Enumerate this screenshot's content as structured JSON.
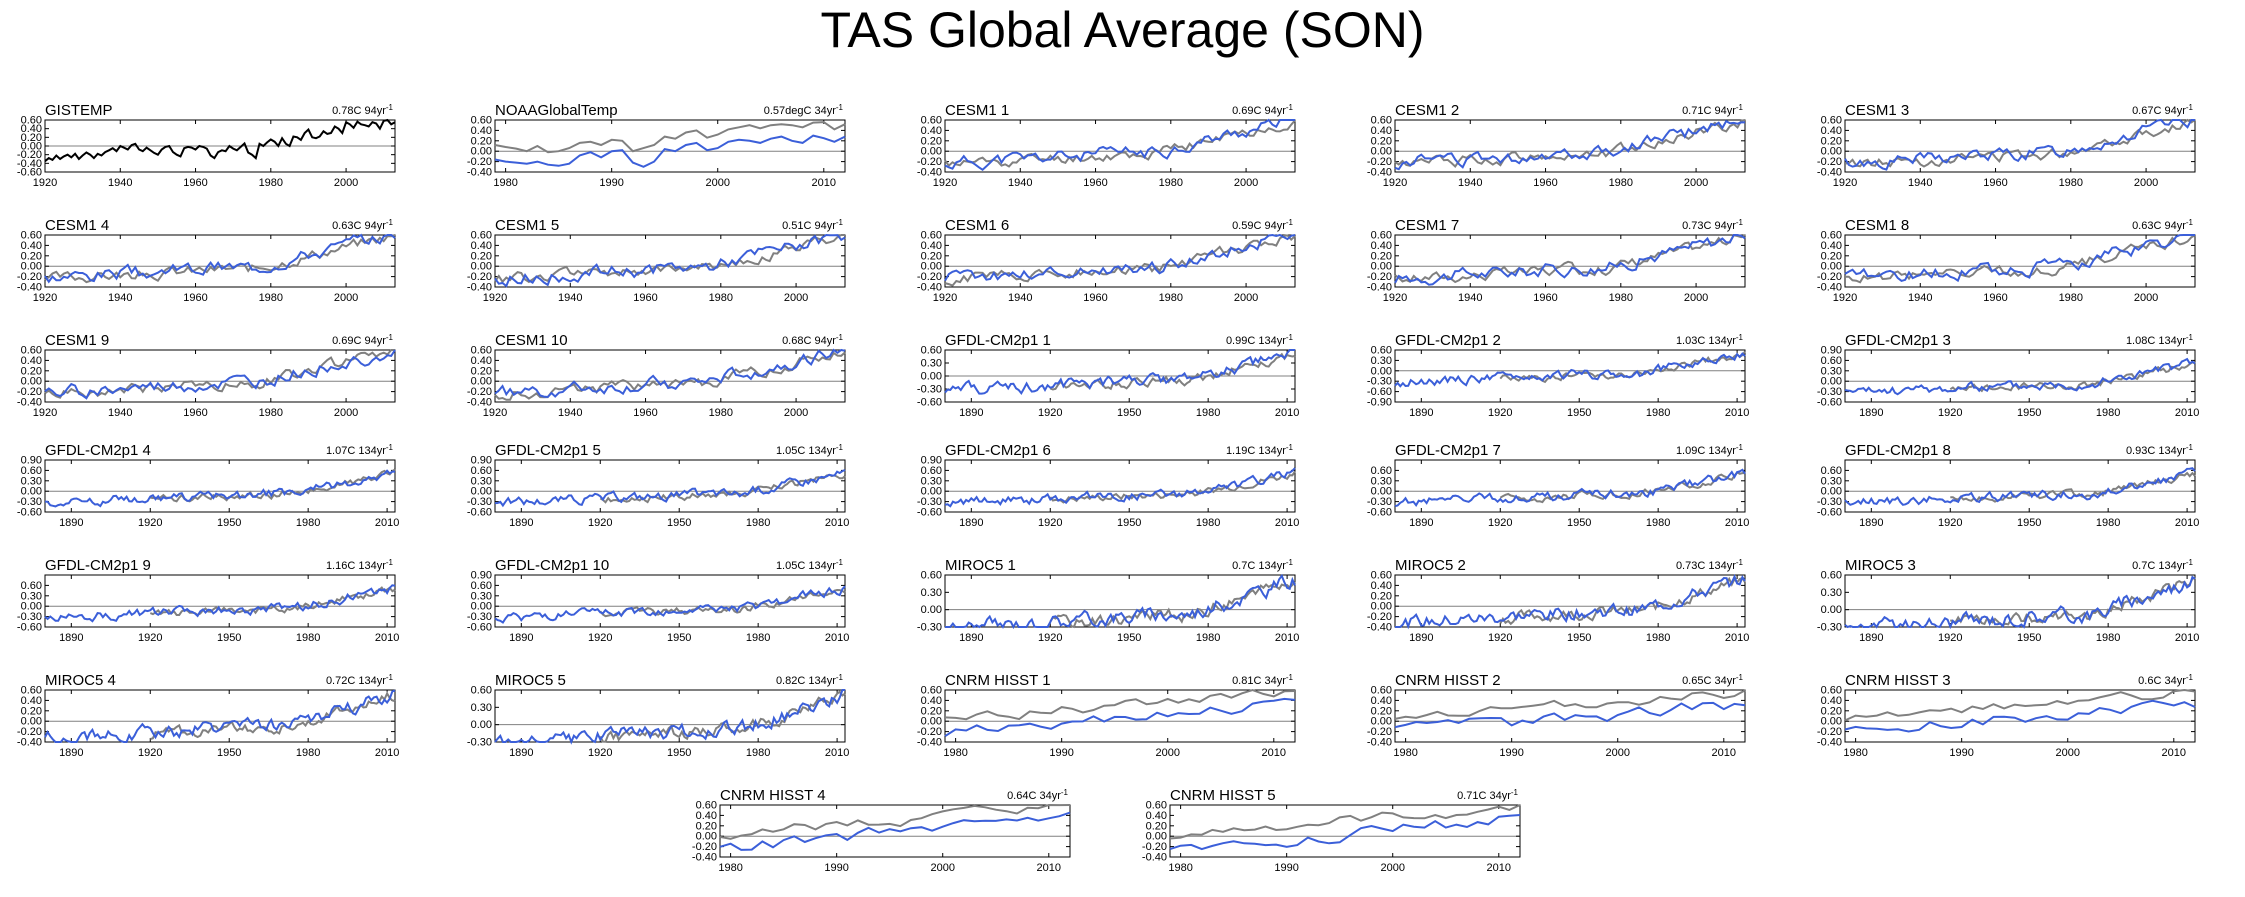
{
  "title": "TAS Global Average (SON)",
  "colors": {
    "observed": "#808080",
    "model": "#3b5fd9",
    "obs_only": "#000000",
    "axis": "#000000",
    "zero": "#808080"
  },
  "chart_data": [
    {
      "type": "line",
      "title": "GISTEMP",
      "trend": "0.78C 94yr",
      "period": [
        1920,
        2013
      ],
      "ylim": [
        -0.6,
        0.6
      ],
      "yticks": [
        "0.60",
        "0.40",
        "0.20",
        "0.00",
        "-0.20",
        "-0.40",
        "-0.60"
      ],
      "xticks": [
        "1920",
        "1940",
        "1960",
        "1980",
        "2000"
      ],
      "series": [
        {
          "x_start": 1920,
          "values": [
            -0.35,
            -0.28,
            -0.32,
            -0.22,
            -0.3,
            -0.24,
            -0.2,
            -0.26,
            -0.18,
            -0.3,
            -0.22,
            -0.15,
            -0.2,
            -0.28,
            -0.18,
            -0.22,
            -0.14,
            -0.1,
            -0.05,
            -0.12,
            0.0,
            -0.04,
            -0.08,
            0.02,
            0.05,
            -0.08,
            -0.12,
            -0.04,
            -0.1,
            -0.16,
            -0.2,
            -0.08,
            -0.02,
            0.0,
            -0.14,
            -0.2,
            -0.24,
            -0.05,
            -0.02,
            -0.04,
            -0.08,
            0.0,
            -0.02,
            -0.06,
            -0.22,
            -0.28,
            -0.14,
            -0.1,
            -0.12,
            0.0,
            -0.06,
            -0.1,
            -0.02,
            0.06,
            -0.15,
            -0.2,
            -0.28,
            0.05,
            0.0,
            0.08,
            0.15,
            0.1,
            0.0,
            0.18,
            0.05,
            0.0,
            0.22,
            0.2,
            0.14,
            0.3,
            0.38,
            0.2,
            0.18,
            0.22,
            0.34,
            0.28,
            0.3,
            0.45,
            0.4,
            0.3,
            0.55,
            0.5,
            0.42,
            0.56,
            0.5,
            0.48,
            0.45,
            0.55,
            0.52,
            0.4,
            0.58,
            0.62,
            0.5,
            0.55
          ]
        }
      ]
    },
    {
      "type": "line",
      "title": "NOAAGlobalTemp",
      "trend": "0.57degC 34yr",
      "period": [
        1979,
        2012
      ],
      "ylim": [
        -0.4,
        0.6
      ],
      "yticks": [
        "0.60",
        "0.40",
        "0.20",
        "0.00",
        "-0.20",
        "-0.40"
      ],
      "xticks": [
        "1980",
        "1990",
        "2000",
        "2010"
      ],
      "series": [
        {
          "name": "obs",
          "x_start": 1979,
          "values": [
            0.12,
            0.08,
            0.05,
            0.0,
            0.1,
            -0.02,
            0.0,
            0.06,
            0.16,
            0.18,
            0.12,
            0.22,
            0.2,
            0.0,
            0.06,
            0.12,
            0.28,
            0.24,
            0.36,
            0.4,
            0.26,
            0.32,
            0.42,
            0.46,
            0.5,
            0.44,
            0.5,
            0.52,
            0.5,
            0.46,
            0.55,
            0.56,
            0.42,
            0.52
          ]
        },
        {
          "name": "model",
          "x_start": 1979,
          "values": [
            -0.16,
            -0.2,
            -0.22,
            -0.24,
            -0.2,
            -0.26,
            -0.28,
            -0.24,
            -0.08,
            -0.02,
            -0.12,
            0.0,
            0.02,
            -0.22,
            -0.3,
            -0.2,
            0.04,
            0.0,
            0.12,
            0.16,
            0.02,
            0.06,
            0.18,
            0.22,
            0.2,
            0.16,
            0.24,
            0.28,
            0.2,
            0.16,
            0.3,
            0.25,
            0.18,
            0.28
          ]
        }
      ]
    },
    {
      "type": "line",
      "title": "CESM1 1",
      "trend": "0.69C 94yr",
      "period": [
        1920,
        2013
      ],
      "ylim": [
        -0.4,
        0.6
      ],
      "yticks": [
        "0.60",
        "0.40",
        "0.20",
        "0.00",
        "-0.20",
        "-0.40"
      ],
      "xticks": [
        "1920",
        "1940",
        "1960",
        "1980",
        "2000"
      ],
      "seed": 11
    },
    {
      "type": "line",
      "title": "CESM1 2",
      "trend": "0.71C 94yr",
      "period": [
        1920,
        2013
      ],
      "ylim": [
        -0.4,
        0.6
      ],
      "yticks": [
        "0.60",
        "0.40",
        "0.20",
        "0.00",
        "-0.20",
        "-0.40"
      ],
      "xticks": [
        "1920",
        "1940",
        "1960",
        "1980",
        "2000"
      ],
      "seed": 12
    },
    {
      "type": "line",
      "title": "CESM1 3",
      "trend": "0.67C 94yr",
      "period": [
        1920,
        2013
      ],
      "ylim": [
        -0.4,
        0.6
      ],
      "yticks": [
        "0.60",
        "0.40",
        "0.20",
        "0.00",
        "-0.20",
        "-0.40"
      ],
      "xticks": [
        "1920",
        "1940",
        "1960",
        "1980",
        "2000"
      ],
      "seed": 13
    },
    {
      "type": "line",
      "title": "CESM1 4",
      "trend": "0.63C 94yr",
      "period": [
        1920,
        2013
      ],
      "ylim": [
        -0.4,
        0.6
      ],
      "yticks": [
        "0.60",
        "0.40",
        "0.20",
        "0.00",
        "-0.20",
        "-0.40"
      ],
      "xticks": [
        "1920",
        "1940",
        "1960",
        "1980",
        "2000"
      ],
      "seed": 14
    },
    {
      "type": "line",
      "title": "CESM1 5",
      "trend": "0.51C 94yr",
      "period": [
        1920,
        2013
      ],
      "ylim": [
        -0.4,
        0.6
      ],
      "yticks": [
        "0.60",
        "0.40",
        "0.20",
        "0.00",
        "-0.20",
        "-0.40"
      ],
      "xticks": [
        "1920",
        "1940",
        "1960",
        "1980",
        "2000"
      ],
      "seed": 15
    },
    {
      "type": "line",
      "title": "CESM1 6",
      "trend": "0.59C 94yr",
      "period": [
        1920,
        2013
      ],
      "ylim": [
        -0.4,
        0.6
      ],
      "yticks": [
        "0.60",
        "0.40",
        "0.20",
        "0.00",
        "-0.20",
        "-0.40"
      ],
      "xticks": [
        "1920",
        "1940",
        "1960",
        "1980",
        "2000"
      ],
      "seed": 16
    },
    {
      "type": "line",
      "title": "CESM1 7",
      "trend": "0.73C 94yr",
      "period": [
        1920,
        2013
      ],
      "ylim": [
        -0.4,
        0.6
      ],
      "yticks": [
        "0.60",
        "0.40",
        "0.20",
        "0.00",
        "-0.20",
        "-0.40"
      ],
      "xticks": [
        "1920",
        "1940",
        "1960",
        "1980",
        "2000"
      ],
      "seed": 17
    },
    {
      "type": "line",
      "title": "CESM1 8",
      "trend": "0.63C 94yr",
      "period": [
        1920,
        2013
      ],
      "ylim": [
        -0.4,
        0.6
      ],
      "yticks": [
        "0.60",
        "0.40",
        "0.20",
        "0.00",
        "-0.20",
        "-0.40"
      ],
      "xticks": [
        "1920",
        "1940",
        "1960",
        "1980",
        "2000"
      ],
      "seed": 18
    },
    {
      "type": "line",
      "title": "CESM1 9",
      "trend": "0.69C 94yr",
      "period": [
        1920,
        2013
      ],
      "ylim": [
        -0.4,
        0.6
      ],
      "yticks": [
        "0.60",
        "0.40",
        "0.20",
        "0.00",
        "-0.20",
        "-0.40"
      ],
      "xticks": [
        "1920",
        "1940",
        "1960",
        "1980",
        "2000"
      ],
      "seed": 19
    },
    {
      "type": "line",
      "title": "CESM1 10",
      "trend": "0.68C 94yr",
      "period": [
        1920,
        2013
      ],
      "ylim": [
        -0.4,
        0.6
      ],
      "yticks": [
        "0.60",
        "0.40",
        "0.20",
        "0.00",
        "-0.20",
        "-0.40"
      ],
      "xticks": [
        "1920",
        "1940",
        "1960",
        "1980",
        "2000"
      ],
      "seed": 20
    },
    {
      "type": "line",
      "title": "GFDL-CM2p1 1",
      "trend": "0.99C 134yr",
      "period": [
        1880,
        2013
      ],
      "ylim": [
        -0.6,
        0.6
      ],
      "yticks": [
        "0.60",
        "0.30",
        "0.00",
        "-0.30",
        "-0.60"
      ],
      "xticks": [
        "1890",
        "1920",
        "1950",
        "1980",
        "2010"
      ],
      "seed": 21
    },
    {
      "type": "line",
      "title": "GFDL-CM2p1 2",
      "trend": "1.03C 134yr",
      "period": [
        1880,
        2013
      ],
      "ylim": [
        -0.9,
        0.6
      ],
      "yticks": [
        "0.60",
        "0.30",
        "0.00",
        "-0.30",
        "-0.60",
        "-0.90"
      ],
      "xticks": [
        "1890",
        "1920",
        "1950",
        "1980",
        "2010"
      ],
      "seed": 22
    },
    {
      "type": "line",
      "title": "GFDL-CM2p1 3",
      "trend": "1.08C 134yr",
      "period": [
        1880,
        2013
      ],
      "ylim": [
        -0.6,
        0.9
      ],
      "yticks": [
        "0.90",
        "0.60",
        "0.30",
        "0.00",
        "-0.30",
        "-0.60"
      ],
      "xticks": [
        "1890",
        "1920",
        "1950",
        "1980",
        "2010"
      ],
      "seed": 23
    },
    {
      "type": "line",
      "title": "GFDL-CM2p1 4",
      "trend": "1.07C 134yr",
      "period": [
        1880,
        2013
      ],
      "ylim": [
        -0.6,
        0.9
      ],
      "yticks": [
        "0.90",
        "0.60",
        "0.30",
        "0.00",
        "-0.30",
        "-0.60"
      ],
      "xticks": [
        "1890",
        "1920",
        "1950",
        "1980",
        "2010"
      ],
      "seed": 24
    },
    {
      "type": "line",
      "title": "GFDL-CM2p1 5",
      "trend": "1.05C 134yr",
      "period": [
        1880,
        2013
      ],
      "ylim": [
        -0.6,
        0.9
      ],
      "yticks": [
        "0.90",
        "0.60",
        "0.30",
        "0.00",
        "-0.30",
        "-0.60"
      ],
      "xticks": [
        "1890",
        "1920",
        "1950",
        "1980",
        "2010"
      ],
      "seed": 25
    },
    {
      "type": "line",
      "title": "GFDL-CM2p1 6",
      "trend": "1.19C 134yr",
      "period": [
        1880,
        2013
      ],
      "ylim": [
        -0.6,
        0.9
      ],
      "yticks": [
        "0.90",
        "0.60",
        "0.30",
        "0.00",
        "-0.30",
        "-0.60"
      ],
      "xticks": [
        "1890",
        "1920",
        "1950",
        "1980",
        "2010"
      ],
      "seed": 26
    },
    {
      "type": "line",
      "title": "GFDL-CM2p1 7",
      "trend": "1.09C 134yr",
      "period": [
        1880,
        2013
      ],
      "ylim": [
        -0.6,
        0.9
      ],
      "yticks": [
        "0.60",
        "0.30",
        "0.00",
        "-0.30",
        "-0.60"
      ],
      "xticks": [
        "1890",
        "1920",
        "1950",
        "1980",
        "2010"
      ],
      "seed": 27
    },
    {
      "type": "line",
      "title": "GFDL-CM2p1 8",
      "trend": "0.93C 134yr",
      "period": [
        1880,
        2013
      ],
      "ylim": [
        -0.6,
        0.9
      ],
      "yticks": [
        "0.60",
        "0.30",
        "0.00",
        "-0.30",
        "-0.60"
      ],
      "xticks": [
        "1890",
        "1920",
        "1950",
        "1980",
        "2010"
      ],
      "seed": 28
    },
    {
      "type": "line",
      "title": "GFDL-CM2p1 9",
      "trend": "1.16C 134yr",
      "period": [
        1880,
        2013
      ],
      "ylim": [
        -0.6,
        0.9
      ],
      "yticks": [
        "0.60",
        "0.30",
        "0.00",
        "-0.30",
        "-0.60"
      ],
      "xticks": [
        "1890",
        "1920",
        "1950",
        "1980",
        "2010"
      ],
      "seed": 29
    },
    {
      "type": "line",
      "title": "GFDL-CM2p1 10",
      "trend": "1.05C 134yr",
      "period": [
        1880,
        2013
      ],
      "ylim": [
        -0.6,
        0.9
      ],
      "yticks": [
        "0.90",
        "0.60",
        "0.30",
        "0.00",
        "-0.30",
        "-0.60"
      ],
      "xticks": [
        "1890",
        "1920",
        "1950",
        "1980",
        "2010"
      ],
      "seed": 30
    },
    {
      "type": "line",
      "title": "MIROC5 1",
      "trend": "0.7C 134yr",
      "period": [
        1880,
        2013
      ],
      "ylim": [
        -0.3,
        0.6
      ],
      "yticks": [
        "0.60",
        "0.30",
        "0.00",
        "-0.30"
      ],
      "xticks": [
        "1890",
        "1920",
        "1950",
        "1980",
        "2010"
      ],
      "seed": 31
    },
    {
      "type": "line",
      "title": "MIROC5 2",
      "trend": "0.73C 134yr",
      "period": [
        1880,
        2013
      ],
      "ylim": [
        -0.4,
        0.6
      ],
      "yticks": [
        "0.60",
        "0.40",
        "0.20",
        "0.00",
        "-0.20",
        "-0.40"
      ],
      "xticks": [
        "1890",
        "1920",
        "1950",
        "1980",
        "2010"
      ],
      "seed": 32
    },
    {
      "type": "line",
      "title": "MIROC5 3",
      "trend": "0.7C 134yr",
      "period": [
        1880,
        2013
      ],
      "ylim": [
        -0.3,
        0.6
      ],
      "yticks": [
        "0.60",
        "0.30",
        "0.00",
        "-0.30"
      ],
      "xticks": [
        "1890",
        "1920",
        "1950",
        "1980",
        "2010"
      ],
      "seed": 33
    },
    {
      "type": "line",
      "title": "MIROC5 4",
      "trend": "0.72C 134yr",
      "period": [
        1880,
        2013
      ],
      "ylim": [
        -0.4,
        0.6
      ],
      "yticks": [
        "0.60",
        "0.40",
        "0.20",
        "0.00",
        "-0.20",
        "-0.40"
      ],
      "xticks": [
        "1890",
        "1920",
        "1950",
        "1980",
        "2010"
      ],
      "seed": 34
    },
    {
      "type": "line",
      "title": "MIROC5 5",
      "trend": "0.82C 134yr",
      "period": [
        1880,
        2013
      ],
      "ylim": [
        -0.3,
        0.6
      ],
      "yticks": [
        "0.60",
        "0.30",
        "0.00",
        "-0.30"
      ],
      "xticks": [
        "1890",
        "1920",
        "1950",
        "1980",
        "2010"
      ],
      "seed": 35
    },
    {
      "type": "line",
      "title": "CNRM HISST 1",
      "trend": "0.81C 34yr",
      "period": [
        1979,
        2012
      ],
      "ylim": [
        -0.4,
        0.6
      ],
      "yticks": [
        "0.60",
        "0.40",
        "0.20",
        "0.00",
        "-0.20",
        "-0.40"
      ],
      "xticks": [
        "1980",
        "1990",
        "2000",
        "2010"
      ],
      "seed": 36
    },
    {
      "type": "line",
      "title": "CNRM HISST 2",
      "trend": "0.65C 34yr",
      "period": [
        1979,
        2012
      ],
      "ylim": [
        -0.4,
        0.6
      ],
      "yticks": [
        "0.60",
        "0.40",
        "0.20",
        "0.00",
        "-0.20",
        "-0.40"
      ],
      "xticks": [
        "1980",
        "1990",
        "2000",
        "2010"
      ],
      "seed": 37
    },
    {
      "type": "line",
      "title": "CNRM HISST 3",
      "trend": "0.6C 34yr",
      "period": [
        1979,
        2012
      ],
      "ylim": [
        -0.4,
        0.6
      ],
      "yticks": [
        "0.60",
        "0.40",
        "0.20",
        "0.00",
        "-0.20",
        "-0.40"
      ],
      "xticks": [
        "1980",
        "1990",
        "2000",
        "2010"
      ],
      "seed": 38
    },
    {
      "type": "line",
      "title": "CNRM HISST 4",
      "trend": "0.64C 34yr",
      "period": [
        1979,
        2012
      ],
      "ylim": [
        -0.4,
        0.6
      ],
      "yticks": [
        "0.60",
        "0.40",
        "0.20",
        "0.00",
        "-0.20",
        "-0.40"
      ],
      "xticks": [
        "1980",
        "1990",
        "2000",
        "2010"
      ],
      "seed": 39
    },
    {
      "type": "line",
      "title": "CNRM HISST 5",
      "trend": "0.71C 34yr",
      "period": [
        1979,
        2012
      ],
      "ylim": [
        -0.4,
        0.6
      ],
      "yticks": [
        "0.60",
        "0.40",
        "0.20",
        "0.00",
        "-0.20",
        "-0.40"
      ],
      "xticks": [
        "1980",
        "1990",
        "2000",
        "2010"
      ],
      "seed": 40
    }
  ]
}
